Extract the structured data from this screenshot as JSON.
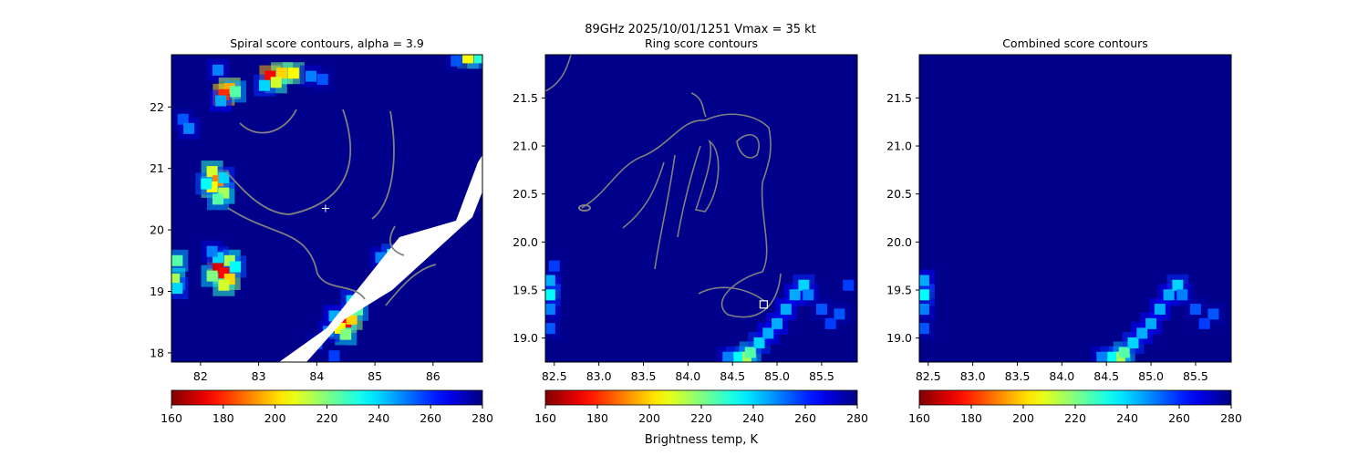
{
  "figure": {
    "suptitle": "89GHz  2025/10/01/1251    Vmax = 35 kt",
    "colorbar_label": "Brightness temp, K"
  },
  "colors": {
    "background": "#00008b",
    "contour": "#808080",
    "missing": "#ffffff",
    "colormap": "jet_r"
  },
  "chart_data": [
    {
      "type": "heatmap",
      "title": "Spiral score contours, alpha =  3.9",
      "xlim": [
        81.5,
        86.85
      ],
      "ylim": [
        17.85,
        22.85
      ],
      "xticks": [
        82,
        83,
        84,
        85,
        86
      ],
      "yticks": [
        18,
        19,
        20,
        21,
        22
      ],
      "marker": {
        "symbol": "+",
        "x": 84.15,
        "y": 20.35
      },
      "colorbar": {
        "min": 160,
        "max": 280,
        "ticks": [
          160,
          180,
          200,
          220,
          240,
          260,
          280
        ]
      },
      "cells": [
        [
          82.3,
          22.6,
          250
        ],
        [
          82.5,
          22.3,
          195
        ],
        [
          82.4,
          22.2,
          180
        ],
        [
          82.6,
          22.25,
          225
        ],
        [
          82.35,
          22.1,
          245
        ],
        [
          83.2,
          22.5,
          175
        ],
        [
          83.4,
          22.55,
          200
        ],
        [
          83.6,
          22.55,
          205
        ],
        [
          83.3,
          22.4,
          210
        ],
        [
          83.1,
          22.35,
          240
        ],
        [
          83.9,
          22.5,
          250
        ],
        [
          84.1,
          22.45,
          255
        ],
        [
          86.6,
          22.8,
          205
        ],
        [
          86.8,
          22.8,
          230
        ],
        [
          86.4,
          22.75,
          255
        ],
        [
          81.7,
          21.8,
          255
        ],
        [
          81.8,
          21.65,
          250
        ],
        [
          82.2,
          20.95,
          210
        ],
        [
          82.3,
          20.8,
          190
        ],
        [
          82.2,
          20.7,
          205
        ],
        [
          82.4,
          20.6,
          215
        ],
        [
          82.3,
          20.5,
          225
        ],
        [
          82.1,
          20.75,
          235
        ],
        [
          82.4,
          20.85,
          240
        ],
        [
          82.3,
          19.4,
          170
        ],
        [
          82.4,
          19.3,
          175
        ],
        [
          82.5,
          19.5,
          215
        ],
        [
          82.2,
          19.25,
          220
        ],
        [
          82.5,
          19.2,
          200
        ],
        [
          82.4,
          19.1,
          210
        ],
        [
          82.6,
          19.4,
          235
        ],
        [
          82.3,
          19.55,
          240
        ],
        [
          82.2,
          19.65,
          250
        ],
        [
          81.6,
          19.5,
          225
        ],
        [
          81.55,
          19.2,
          215
        ],
        [
          81.6,
          19.05,
          240
        ],
        [
          84.5,
          18.5,
          175
        ],
        [
          84.6,
          18.55,
          200
        ],
        [
          84.4,
          18.4,
          205
        ],
        [
          84.5,
          18.3,
          220
        ],
        [
          84.7,
          18.7,
          225
        ],
        [
          84.3,
          18.6,
          245
        ],
        [
          84.6,
          18.85,
          240
        ],
        [
          84.2,
          18.35,
          250
        ],
        [
          85.1,
          19.55,
          250
        ],
        [
          85.3,
          19.6,
          235
        ],
        [
          85.5,
          19.55,
          245
        ],
        [
          85.2,
          19.4,
          255
        ],
        [
          84.0,
          18.15,
          255
        ],
        [
          84.3,
          17.95,
          258
        ],
        [
          85.8,
          19.75,
          258
        ]
      ]
    },
    {
      "type": "heatmap",
      "title": "Ring score contours",
      "xlim": [
        82.4,
        85.9
      ],
      "ylim": [
        18.75,
        21.95
      ],
      "xticks": [
        82.5,
        83.0,
        83.5,
        84.0,
        84.5,
        85.0,
        85.5
      ],
      "yticks": [
        19.0,
        19.5,
        20.0,
        20.5,
        21.0,
        21.5
      ],
      "marker": {
        "symbol": "square",
        "x": 84.85,
        "y": 19.35
      },
      "colorbar": {
        "min": 160,
        "max": 280,
        "ticks": [
          160,
          180,
          200,
          220,
          240,
          260,
          280
        ]
      },
      "cells": [
        [
          84.65,
          18.8,
          215
        ],
        [
          84.7,
          18.85,
          225
        ],
        [
          84.55,
          18.8,
          235
        ],
        [
          84.8,
          18.95,
          240
        ],
        [
          84.9,
          19.05,
          245
        ],
        [
          85.0,
          19.15,
          245
        ],
        [
          85.1,
          19.3,
          245
        ],
        [
          85.2,
          19.45,
          245
        ],
        [
          85.3,
          19.55,
          240
        ],
        [
          85.35,
          19.45,
          250
        ],
        [
          84.45,
          18.8,
          250
        ],
        [
          85.5,
          19.3,
          255
        ],
        [
          85.7,
          19.25,
          255
        ],
        [
          85.6,
          19.15,
          258
        ],
        [
          85.8,
          19.55,
          258
        ],
        [
          82.45,
          19.6,
          245
        ],
        [
          82.45,
          19.45,
          235
        ],
        [
          82.45,
          19.3,
          250
        ],
        [
          82.45,
          19.1,
          255
        ],
        [
          82.5,
          19.75,
          258
        ]
      ]
    },
    {
      "type": "heatmap",
      "title": "Combined score contours",
      "xlim": [
        82.4,
        85.9
      ],
      "ylim": [
        18.75,
        21.95
      ],
      "xticks": [
        82.5,
        83.0,
        83.5,
        84.0,
        84.5,
        85.0,
        85.5
      ],
      "yticks": [
        19.0,
        19.5,
        20.0,
        20.5,
        21.0,
        21.5
      ],
      "colorbar": {
        "min": 160,
        "max": 280,
        "ticks": [
          160,
          180,
          200,
          220,
          240,
          260,
          280
        ]
      },
      "cells": [
        [
          84.65,
          18.8,
          215
        ],
        [
          84.7,
          18.85,
          225
        ],
        [
          84.55,
          18.8,
          235
        ],
        [
          84.8,
          18.95,
          240
        ],
        [
          84.9,
          19.05,
          245
        ],
        [
          85.0,
          19.15,
          245
        ],
        [
          85.1,
          19.3,
          245
        ],
        [
          85.2,
          19.45,
          245
        ],
        [
          85.3,
          19.55,
          240
        ],
        [
          85.35,
          19.45,
          250
        ],
        [
          84.45,
          18.8,
          250
        ],
        [
          85.5,
          19.3,
          255
        ],
        [
          85.7,
          19.25,
          255
        ],
        [
          85.6,
          19.15,
          258
        ],
        [
          82.45,
          19.6,
          245
        ],
        [
          82.45,
          19.45,
          235
        ],
        [
          82.45,
          19.3,
          250
        ],
        [
          82.45,
          19.1,
          255
        ]
      ]
    }
  ]
}
